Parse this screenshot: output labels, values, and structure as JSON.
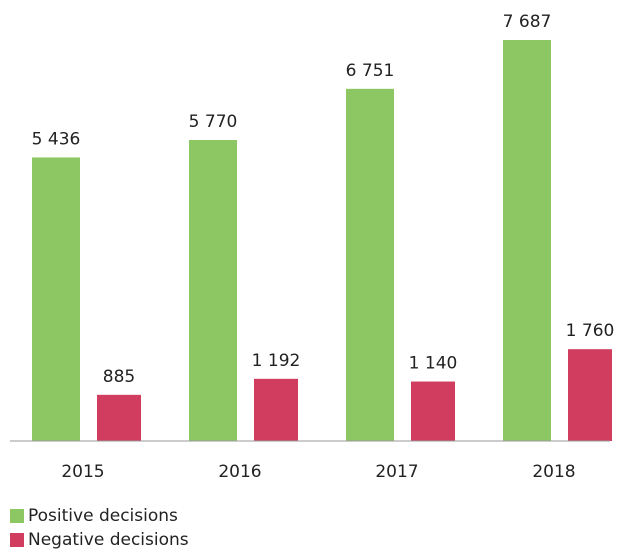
{
  "chart_data": {
    "type": "bar",
    "categories": [
      "2015",
      "2016",
      "2017",
      "2018"
    ],
    "series": [
      {
        "name": "Positive decisions",
        "color": "#8dc763",
        "values": [
          5436,
          5770,
          6751,
          7687
        ],
        "value_labels": [
          "5 436",
          "5 770",
          "6 751",
          "7 687"
        ]
      },
      {
        "name": "Negative decisions",
        "color": "#d13d5f",
        "values": [
          885,
          1192,
          1140,
          1760
        ],
        "value_labels": [
          "885",
          "1 192",
          "1 140",
          "1 760"
        ]
      }
    ],
    "legend": "bottom-left"
  }
}
